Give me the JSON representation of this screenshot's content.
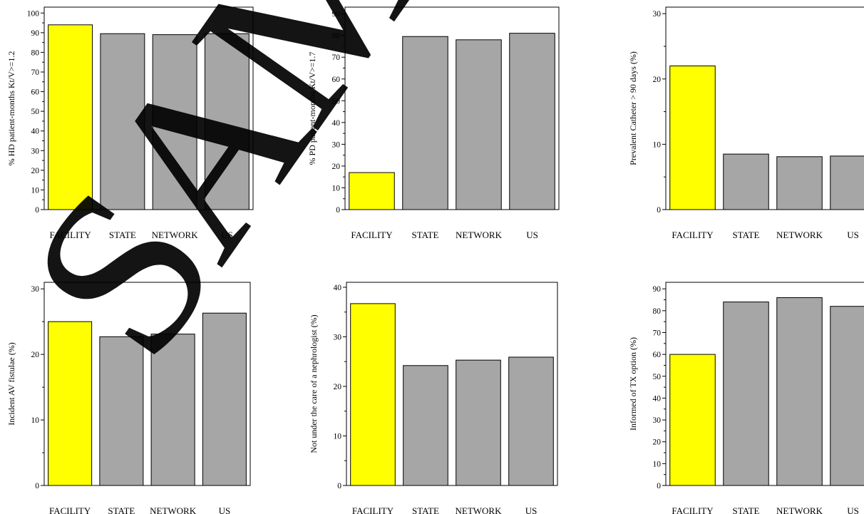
{
  "colors": {
    "highlight": "#ffff00",
    "bar": "#a6a6a6",
    "watermark": "#8a8a8a",
    "frame": "#000000"
  },
  "watermark": "SAMPLE",
  "chart_data": [
    {
      "type": "bar",
      "categories": [
        "FACILITY",
        "STATE",
        "NETWORK",
        "US"
      ],
      "values": [
        94,
        89.5,
        89,
        89.5
      ],
      "ylabel": "% HD patient-months Kt/V>=1.2",
      "ylim": [
        0,
        103
      ],
      "yticks": [
        0,
        10,
        20,
        30,
        40,
        50,
        60,
        70,
        80,
        90,
        100
      ],
      "highlight_index": 0
    },
    {
      "type": "bar",
      "categories": [
        "FACILITY",
        "STATE",
        "NETWORK",
        "US"
      ],
      "values": [
        17,
        79.5,
        78,
        81
      ],
      "ylabel": "% PD patient-months Kt/V>=1.7",
      "ylim": [
        0,
        93
      ],
      "yticks": [
        0,
        10,
        20,
        30,
        40,
        50,
        60,
        70,
        80,
        90
      ],
      "highlight_index": 0
    },
    {
      "type": "bar",
      "categories": [
        "FACILITY",
        "STATE",
        "NETWORK",
        "US"
      ],
      "values": [
        22,
        8.5,
        8.1,
        8.2
      ],
      "ylabel": "Prevalent Catheter > 90 days (%)",
      "ylim": [
        0,
        31
      ],
      "yticks": [
        0,
        10,
        20,
        30
      ],
      "highlight_index": 0
    },
    {
      "type": "bar",
      "categories": [
        "FACILITY",
        "STATE",
        "NETWORK",
        "US"
      ],
      "values": [
        25,
        22.7,
        23.1,
        26.3
      ],
      "ylabel": "Incident AV fistulae (%)",
      "ylim": [
        0,
        31
      ],
      "yticks": [
        0,
        10,
        20,
        30
      ],
      "highlight_index": 0
    },
    {
      "type": "bar",
      "categories": [
        "FACILITY",
        "STATE",
        "NETWORK",
        "US"
      ],
      "values": [
        36.7,
        24.2,
        25.3,
        25.9
      ],
      "ylabel": "Not under the care of a nephrologist (%)",
      "ylim": [
        0,
        41
      ],
      "yticks": [
        0,
        10,
        20,
        30,
        40
      ],
      "highlight_index": 0
    },
    {
      "type": "bar",
      "categories": [
        "FACILITY",
        "STATE",
        "NETWORK",
        "US"
      ],
      "values": [
        60,
        84,
        86,
        82
      ],
      "ylabel": "Informed of TX option (%)",
      "ylim": [
        0,
        93
      ],
      "yticks": [
        0,
        10,
        20,
        30,
        40,
        50,
        60,
        70,
        80,
        90
      ],
      "highlight_index": 0
    }
  ]
}
